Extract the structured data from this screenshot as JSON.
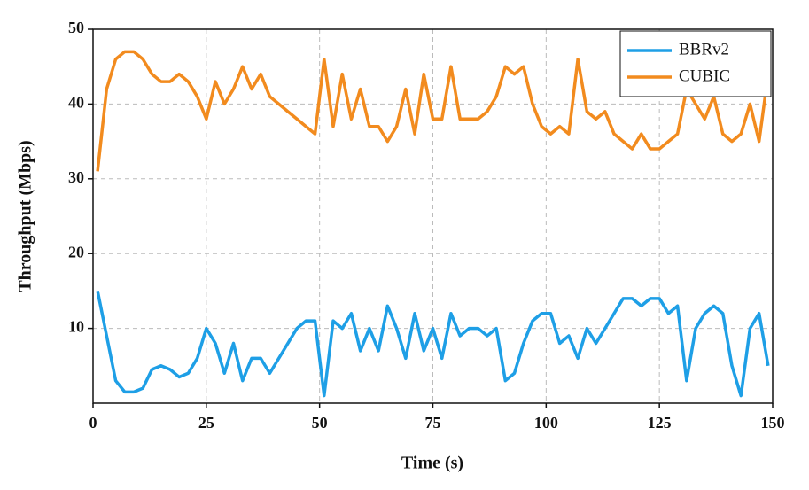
{
  "chart_data": {
    "type": "line",
    "x_label": "Time (s)",
    "y_label": "Throughput (Mbps)",
    "x": [
      1,
      3,
      5,
      7,
      9,
      11,
      13,
      15,
      17,
      19,
      21,
      23,
      25,
      27,
      29,
      31,
      33,
      35,
      37,
      39,
      41,
      43,
      45,
      47,
      49,
      51,
      53,
      55,
      57,
      59,
      61,
      63,
      65,
      67,
      69,
      71,
      73,
      75,
      77,
      79,
      81,
      83,
      85,
      87,
      89,
      91,
      93,
      95,
      97,
      99,
      101,
      103,
      105,
      107,
      109,
      111,
      113,
      115,
      117,
      119,
      121,
      123,
      125,
      127,
      129,
      131,
      133,
      135,
      137,
      139,
      141,
      143,
      145,
      147,
      149
    ],
    "series": [
      {
        "name": "BBRv2",
        "color": "#1e9fe6",
        "values": [
          15,
          9,
          3,
          1.5,
          1.5,
          2,
          4.5,
          5,
          4.5,
          3.5,
          4,
          6,
          10,
          8,
          4,
          8,
          3,
          6,
          6,
          4,
          6,
          8,
          10,
          11,
          11,
          1,
          11,
          10,
          12,
          7,
          10,
          7,
          13,
          10,
          6,
          12,
          7,
          10,
          6,
          12,
          9,
          10,
          10,
          9,
          10,
          3,
          4,
          8,
          11,
          12,
          12,
          8,
          9,
          6,
          10,
          8,
          10,
          12,
          14,
          14,
          13,
          14,
          14,
          12,
          13,
          3,
          10,
          12,
          13,
          12,
          5,
          1,
          10,
          12,
          5
        ]
      },
      {
        "name": "CUBIC",
        "color": "#f28b1e",
        "values": [
          31,
          42,
          46,
          47,
          47,
          46,
          44,
          43,
          43,
          44,
          43,
          41,
          38,
          43,
          40,
          42,
          45,
          42,
          44,
          41,
          40,
          39,
          38,
          37,
          36,
          46,
          37,
          44,
          38,
          42,
          37,
          37,
          35,
          37,
          42,
          36,
          44,
          38,
          38,
          45,
          38,
          38,
          38,
          39,
          41,
          45,
          44,
          45,
          40,
          37,
          36,
          37,
          36,
          46,
          39,
          38,
          39,
          36,
          35,
          34,
          36,
          34,
          34,
          35,
          36,
          42,
          40,
          38,
          41,
          36,
          35,
          36,
          40,
          35,
          44
        ]
      }
    ],
    "xlim": [
      0,
      150
    ],
    "xticks": [
      0,
      25,
      50,
      75,
      100,
      125,
      150
    ],
    "ylim": [
      0,
      50
    ],
    "yticks": [
      10,
      20,
      30,
      40,
      50
    ],
    "grid": true,
    "legend": "upper right"
  }
}
